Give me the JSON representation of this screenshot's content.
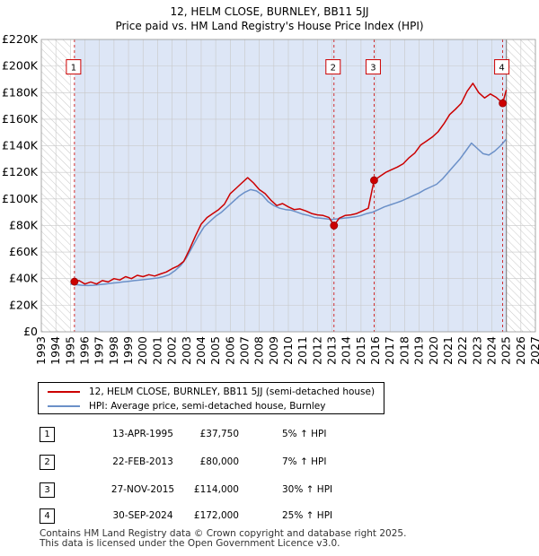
{
  "title": "12, HELM CLOSE, BURNLEY, BB11 5JJ",
  "subtitle": "Price paid vs. HM Land Registry's House Price Index (HPI)",
  "colors": {
    "red": "#cc0000",
    "blue": "#6b90c8",
    "shade": "#dde6f6",
    "hatch": "#c8c8c8",
    "grid": "#c8c8c8"
  },
  "chart_data": {
    "type": "line",
    "xlim": [
      1993,
      2027
    ],
    "ylim": [
      0,
      220000
    ],
    "x_ticks": [
      1993,
      1994,
      1995,
      1996,
      1997,
      1998,
      1999,
      2000,
      2001,
      2002,
      2003,
      2004,
      2005,
      2006,
      2007,
      2008,
      2009,
      2010,
      2011,
      2012,
      2013,
      2014,
      2015,
      2016,
      2017,
      2018,
      2019,
      2020,
      2021,
      2022,
      2023,
      2024,
      2025,
      2026,
      2027
    ],
    "y_ticks": [
      {
        "value": 0,
        "label": "£0"
      },
      {
        "value": 20000,
        "label": "£20K"
      },
      {
        "value": 40000,
        "label": "£40K"
      },
      {
        "value": 60000,
        "label": "£60K"
      },
      {
        "value": 80000,
        "label": "£80K"
      },
      {
        "value": 100000,
        "label": "£100K"
      },
      {
        "value": 120000,
        "label": "£120K"
      },
      {
        "value": 140000,
        "label": "£140K"
      },
      {
        "value": 160000,
        "label": "£160K"
      },
      {
        "value": 180000,
        "label": "£180K"
      },
      {
        "value": 200000,
        "label": "£200K"
      },
      {
        "value": 220000,
        "label": "£220K"
      }
    ],
    "shaded_range": [
      1995.28,
      2025.0
    ],
    "hatched_before": 1995.0,
    "hatched_after": 2025.0,
    "series": [
      {
        "name": "12, HELM CLOSE, BURNLEY, BB11 5JJ (semi-detached house)",
        "color": "#cc0000",
        "x": [
          1995.28,
          1995.6,
          1996.0,
          1996.4,
          1996.8,
          1997.2,
          1997.6,
          1998.0,
          1998.4,
          1998.8,
          1999.2,
          1999.6,
          2000.0,
          2000.4,
          2000.8,
          2001.2,
          2001.6,
          2002.0,
          2002.4,
          2002.8,
          2003.2,
          2003.6,
          2004.0,
          2004.4,
          2004.8,
          2005.2,
          2005.6,
          2006.0,
          2006.4,
          2006.8,
          2007.2,
          2007.6,
          2008.0,
          2008.4,
          2008.8,
          2009.2,
          2009.6,
          2010.0,
          2010.4,
          2010.8,
          2011.2,
          2011.6,
          2012.0,
          2012.4,
          2012.8,
          2013.14,
          2013.5,
          2013.9,
          2014.3,
          2014.7,
          2015.1,
          2015.5,
          2015.9,
          2016.3,
          2016.7,
          2017.1,
          2017.5,
          2017.9,
          2018.3,
          2018.7,
          2019.1,
          2019.5,
          2019.9,
          2020.3,
          2020.7,
          2021.1,
          2021.5,
          2021.9,
          2022.3,
          2022.7,
          2023.1,
          2023.5,
          2023.9,
          2024.3,
          2024.75,
          2025.0
        ],
        "y": [
          37750,
          38500,
          36000,
          37500,
          36000,
          38500,
          37500,
          40000,
          39000,
          41500,
          40000,
          42500,
          41500,
          43000,
          42000,
          43500,
          45000,
          47500,
          49500,
          53000,
          62000,
          72000,
          81000,
          86000,
          89000,
          92000,
          96000,
          104000,
          108000,
          112000,
          116000,
          112000,
          107000,
          104000,
          99000,
          95000,
          96500,
          94000,
          92000,
          92500,
          91000,
          89000,
          88000,
          87500,
          86000,
          80000,
          85500,
          87500,
          88000,
          89000,
          91000,
          93000,
          114000,
          117000,
          120000,
          122000,
          124000,
          126500,
          131000,
          134500,
          140500,
          143500,
          146500,
          150500,
          156500,
          163500,
          167500,
          172000,
          181000,
          187000,
          180000,
          176000,
          179000,
          176500,
          172000,
          182000
        ]
      },
      {
        "name": "HPI: Average price, semi-detached house, Burnley",
        "color": "#6b90c8",
        "x": [
          1995.0,
          1995.4,
          1995.8,
          1996.2,
          1996.6,
          1997.0,
          1997.4,
          1997.8,
          1998.2,
          1998.6,
          1999.0,
          1999.4,
          1999.8,
          2000.2,
          2000.6,
          2001.0,
          2001.4,
          2001.8,
          2002.2,
          2002.6,
          2003.0,
          2003.4,
          2003.8,
          2004.2,
          2004.6,
          2005.0,
          2005.4,
          2005.8,
          2006.2,
          2006.6,
          2007.0,
          2007.4,
          2007.8,
          2008.2,
          2008.6,
          2009.0,
          2009.4,
          2009.8,
          2010.2,
          2010.6,
          2011.0,
          2011.4,
          2011.8,
          2012.2,
          2012.6,
          2013.0,
          2013.4,
          2013.8,
          2014.2,
          2014.6,
          2015.0,
          2015.4,
          2015.8,
          2016.2,
          2016.6,
          2017.0,
          2017.4,
          2017.8,
          2018.2,
          2018.6,
          2019.0,
          2019.4,
          2019.8,
          2020.2,
          2020.6,
          2021.0,
          2021.4,
          2021.8,
          2022.2,
          2022.6,
          2023.0,
          2023.4,
          2023.8,
          2024.2,
          2024.6,
          2025.0
        ],
        "y": [
          36000,
          35500,
          35000,
          34800,
          35000,
          35500,
          36000,
          36500,
          37000,
          37500,
          38000,
          38500,
          39000,
          39500,
          40000,
          40500,
          41500,
          43000,
          46000,
          50000,
          56000,
          64000,
          72000,
          79000,
          83000,
          87000,
          90000,
          94000,
          98000,
          102000,
          105000,
          107000,
          106000,
          103000,
          98000,
          95000,
          93000,
          92000,
          91500,
          90000,
          88500,
          87500,
          86000,
          85500,
          85000,
          84500,
          85000,
          85500,
          86000,
          86500,
          87500,
          89000,
          90000,
          92000,
          94000,
          95500,
          97000,
          98500,
          100500,
          102500,
          104500,
          107000,
          109000,
          111000,
          115000,
          120000,
          125000,
          130000,
          136000,
          142000,
          138000,
          134000,
          133000,
          136000,
          140000,
          145000
        ]
      }
    ],
    "transactions": [
      {
        "label": "1",
        "date": "13-APR-1995",
        "price": "£37,750",
        "hpi": "5% ↑ HPI",
        "x": 1995.28,
        "y": 37750
      },
      {
        "label": "2",
        "date": "22-FEB-2013",
        "price": "£80,000",
        "hpi": "7% ↑ HPI",
        "x": 2013.14,
        "y": 80000
      },
      {
        "label": "3",
        "date": "27-NOV-2015",
        "price": "£114,000",
        "hpi": "30% ↑ HPI",
        "x": 2015.9,
        "y": 114000
      },
      {
        "label": "4",
        "date": "30-SEP-2024",
        "price": "£172,000",
        "hpi": "25% ↑ HPI",
        "x": 2024.75,
        "y": 172000
      }
    ]
  },
  "legend": {
    "red_label": "12, HELM CLOSE, BURNLEY, BB11 5JJ (semi-detached house)",
    "blue_label": "HPI: Average price, semi-detached house, Burnley"
  },
  "footer": {
    "line1": "Contains HM Land Registry data © Crown copyright and database right 2025.",
    "line2": "This data is licensed under the Open Government Licence v3.0."
  }
}
